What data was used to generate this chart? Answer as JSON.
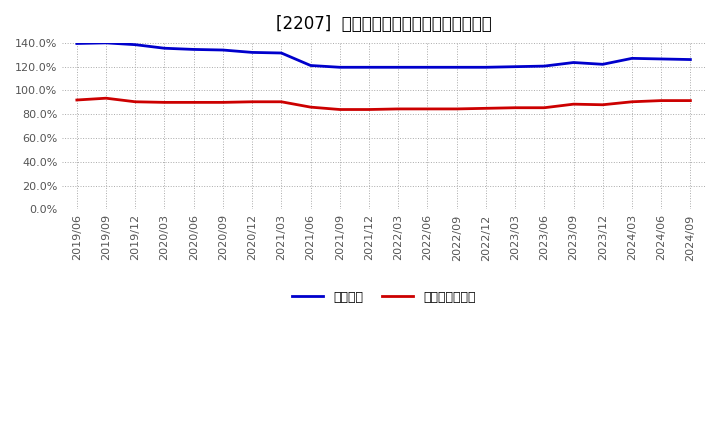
{
  "title": "[2207]  固定比率、固定長期適合率の推移",
  "ylim": [
    0,
    140
  ],
  "yticks": [
    0,
    20,
    40,
    60,
    80,
    100,
    120,
    140
  ],
  "ytick_labels": [
    "0.0%",
    "20.0%",
    "40.0%",
    "60.0%",
    "80.0%",
    "100.0%",
    "120.0%",
    "140.0%"
  ],
  "x_labels": [
    "2019/06",
    "2019/09",
    "2019/12",
    "2020/03",
    "2020/06",
    "2020/09",
    "2020/12",
    "2021/03",
    "2021/06",
    "2021/09",
    "2021/12",
    "2022/03",
    "2022/06",
    "2022/09",
    "2022/12",
    "2023/03",
    "2023/06",
    "2023/09",
    "2023/12",
    "2024/03",
    "2024/06",
    "2024/09"
  ],
  "fixed_ratio": [
    139.5,
    140.0,
    138.5,
    135.5,
    134.5,
    134.0,
    132.0,
    131.5,
    121.0,
    119.5,
    119.5,
    119.5,
    119.5,
    119.5,
    119.5,
    120.0,
    120.5,
    123.5,
    122.0,
    127.0,
    126.5,
    126.0
  ],
  "fixed_long_ratio": [
    92.0,
    93.5,
    90.5,
    90.0,
    90.0,
    90.0,
    90.5,
    90.5,
    86.0,
    84.0,
    84.0,
    84.5,
    84.5,
    84.5,
    85.0,
    85.5,
    85.5,
    88.5,
    88.0,
    90.5,
    91.5,
    91.5
  ],
  "fixed_ratio_color": "#0000cc",
  "fixed_long_ratio_color": "#cc0000",
  "background_color": "#ffffff",
  "plot_bg_color": "#ffffff",
  "grid_color": "#aaaaaa",
  "legend_label_fixed": "固定比率",
  "legend_label_fixed_long": "固定長期適合率",
  "title_fontsize": 12,
  "tick_fontsize": 8,
  "legend_fontsize": 9,
  "line_width": 2.0
}
